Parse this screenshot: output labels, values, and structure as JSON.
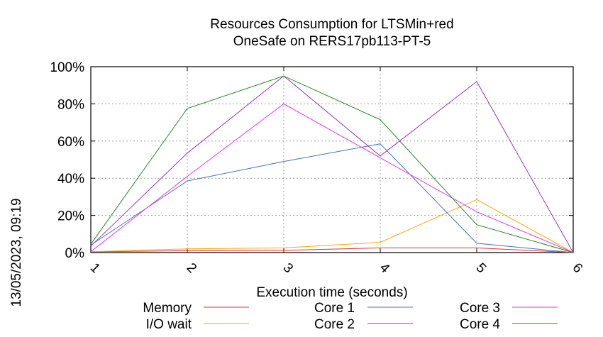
{
  "chart_data": {
    "type": "line",
    "title": "Resources Consumption for LTSMin+red",
    "subtitle": "OneSafe on RERS17pb113-PT-5",
    "xlabel": "Execution time (seconds)",
    "side_label": "13/05/2023, 09:19",
    "x": [
      1,
      2,
      3,
      4,
      5,
      6
    ],
    "xlim": [
      1,
      6
    ],
    "ylim": [
      0,
      100
    ],
    "x_ticks": [
      "1",
      "2",
      "3",
      "4",
      "5",
      "6"
    ],
    "y_ticks": [
      {
        "value": 0,
        "label": "0%"
      },
      {
        "value": 20,
        "label": "20%"
      },
      {
        "value": 40,
        "label": "40%"
      },
      {
        "value": 60,
        "label": "60%"
      },
      {
        "value": 80,
        "label": "80%"
      },
      {
        "value": 100,
        "label": "100%"
      }
    ],
    "grid": true,
    "legend_position": "bottom",
    "series": [
      {
        "name": "Memory",
        "color": "#e8322f",
        "values": [
          0.5,
          1.0,
          1.2,
          2.5,
          2.5,
          0
        ]
      },
      {
        "name": "I/O wait",
        "color": "#ffa500",
        "values": [
          0.5,
          2.0,
          2.5,
          5.5,
          28.5,
          0
        ]
      },
      {
        "name": "Core 1",
        "color": "#4472c4",
        "values": [
          4.0,
          38.5,
          49.0,
          58.5,
          5.0,
          0
        ]
      },
      {
        "name": "Core 2",
        "color": "#9932cc",
        "values": [
          3.5,
          53.5,
          95.0,
          52.0,
          92.0,
          0
        ]
      },
      {
        "name": "Core 3",
        "color": "#ee33ee",
        "values": [
          0.5,
          41.0,
          80.0,
          51.0,
          22.0,
          0
        ]
      },
      {
        "name": "Core 4",
        "color": "#228b22",
        "values": [
          4.5,
          77.5,
          95.0,
          71.5,
          15.0,
          0
        ]
      }
    ]
  }
}
